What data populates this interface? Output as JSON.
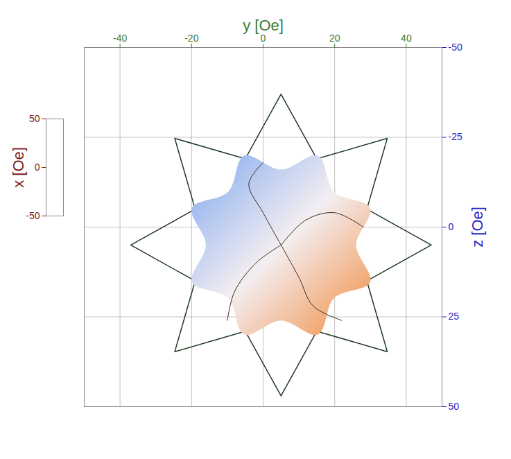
{
  "chart_data": {
    "type": "surface_projection",
    "x_label": "y [Oe]",
    "xlim": [
      -50,
      50
    ],
    "xticks": [
      -40,
      -20,
      0,
      20,
      40
    ],
    "y_label": "z [Oe]",
    "ylim": [
      -50,
      50
    ],
    "yticks": [
      -50,
      -25,
      0,
      25,
      50
    ],
    "z_label": "x [Oe]",
    "zlim": [
      -50,
      50
    ],
    "zticks": [
      50,
      0,
      -50
    ],
    "grid": true,
    "wireframe": {
      "color": "#1e3a24",
      "points": [
        [
          47,
          5
        ],
        [
          29.0,
          15.0
        ],
        [
          34.7,
          34.7
        ],
        [
          15.0,
          29.0
        ],
        [
          5,
          47
        ],
        [
          -5.0,
          29.0
        ],
        [
          -24.7,
          34.7
        ],
        [
          -19.0,
          15.0
        ],
        [
          -37,
          5
        ],
        [
          -19.0,
          -5.0
        ],
        [
          -24.7,
          -24.7
        ],
        [
          -5.0,
          -19.0
        ],
        [
          5,
          -37
        ],
        [
          15.0,
          -19.0
        ],
        [
          34.7,
          -24.7
        ],
        [
          29.0,
          -5.0
        ]
      ]
    },
    "surface": {
      "colors": [
        "#7fa8ee",
        "#f4eef2",
        "#f08a3c"
      ],
      "points": [
        [
          26,
          5
        ],
        [
          29.9,
          15.3
        ],
        [
          19.8,
          19.8
        ],
        [
          15.3,
          29.9
        ],
        [
          5,
          26
        ],
        [
          -5.3,
          29.9
        ],
        [
          -9.8,
          19.8
        ],
        [
          -19.9,
          15.3
        ],
        [
          -16,
          5
        ],
        [
          -19.9,
          -5.3
        ],
        [
          -9.8,
          -9.8
        ],
        [
          -5.3,
          -19.9
        ],
        [
          5,
          -16
        ],
        [
          15.3,
          -19.9
        ],
        [
          19.8,
          -9.8
        ],
        [
          29.9,
          -5.3
        ]
      ]
    },
    "field_lines": {
      "color": "#3a2a1a",
      "lines": [
        [
          [
            5,
            5
          ],
          [
            12,
            -2
          ],
          [
            20,
            -4
          ],
          [
            28,
            0
          ]
        ],
        [
          [
            5,
            5
          ],
          [
            -2,
            10
          ],
          [
            -8,
            18
          ],
          [
            -10,
            26
          ]
        ],
        [
          [
            5,
            5
          ],
          [
            10,
            14
          ],
          [
            14,
            22
          ],
          [
            22,
            26
          ]
        ],
        [
          [
            5,
            5
          ],
          [
            0,
            -4
          ],
          [
            -4,
            -12
          ],
          [
            0,
            -18
          ]
        ]
      ]
    }
  }
}
